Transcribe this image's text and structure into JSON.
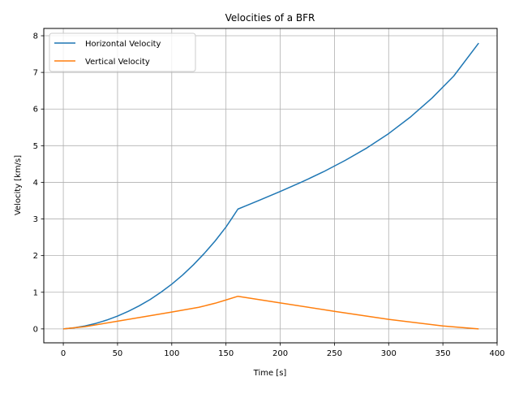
{
  "chart_data": {
    "type": "line",
    "title": "Velocities of a BFR",
    "xlabel": "Time [s]",
    "ylabel": "Velocity [km/s]",
    "xlim": [
      -18,
      400
    ],
    "ylim": [
      -0.38,
      8.2
    ],
    "xticks": [
      0,
      50,
      100,
      150,
      200,
      250,
      300,
      350,
      400
    ],
    "yticks": [
      0,
      1,
      2,
      3,
      4,
      5,
      6,
      7,
      8
    ],
    "grid": true,
    "legend_position": "upper-left",
    "series": [
      {
        "name": "Horizontal Velocity",
        "color": "#1f77b4",
        "x": [
          0,
          10,
          20,
          30,
          40,
          50,
          60,
          70,
          80,
          90,
          100,
          110,
          120,
          130,
          140,
          150,
          155,
          161,
          170,
          180,
          200,
          220,
          240,
          260,
          280,
          300,
          320,
          340,
          360,
          383
        ],
        "y": [
          0,
          0.03,
          0.08,
          0.15,
          0.24,
          0.35,
          0.48,
          0.63,
          0.8,
          1.0,
          1.22,
          1.47,
          1.75,
          2.06,
          2.4,
          2.78,
          3.0,
          3.27,
          3.38,
          3.5,
          3.75,
          4.01,
          4.29,
          4.6,
          4.94,
          5.33,
          5.78,
          6.3,
          6.9,
          7.8
        ]
      },
      {
        "name": "Vertical Velocity",
        "color": "#ff7f0e",
        "x": [
          0,
          20,
          50,
          100,
          125,
          140,
          150,
          161,
          200,
          250,
          300,
          350,
          383
        ],
        "y": [
          0,
          0.06,
          0.21,
          0.46,
          0.59,
          0.7,
          0.79,
          0.89,
          0.71,
          0.48,
          0.26,
          0.08,
          0
        ]
      }
    ]
  }
}
